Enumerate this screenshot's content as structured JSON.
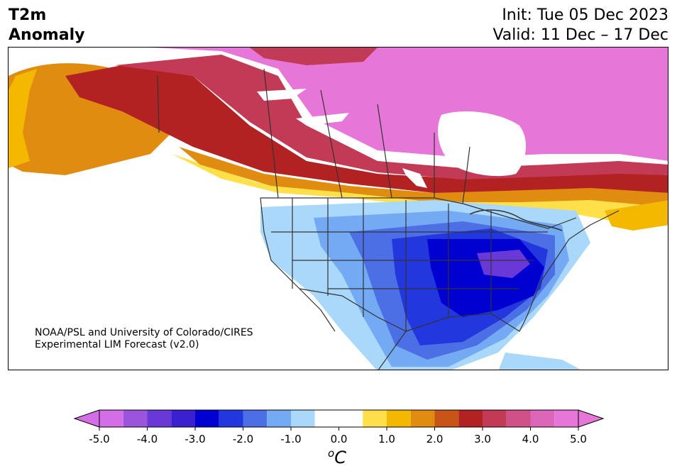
{
  "title": {
    "left_line1": "T2m",
    "left_line2": "Anomaly",
    "init": "Init: Tue 05 Dec 2023",
    "valid": "Valid: 11 Dec – 17 Dec"
  },
  "credit": {
    "line1": "NOAA/PSL and University of Colorado/CIRES",
    "line2": "Experimental LIM Forecast (v2.0)"
  },
  "colorbar": {
    "ticks": [
      "-5.0",
      "-4.0",
      "-3.0",
      "-2.0",
      "-1.0",
      "0.0",
      "1.0",
      "2.0",
      "3.0",
      "4.0",
      "5.0"
    ],
    "unit_sup": "o",
    "unit": "C",
    "levels": [
      -5.0,
      -4.5,
      -4.0,
      -3.5,
      -3.0,
      -2.5,
      -2.0,
      -1.5,
      -1.0,
      -0.5,
      0.5,
      1.0,
      1.5,
      2.0,
      2.5,
      3.0,
      3.5,
      4.0,
      4.5,
      5.0
    ],
    "colors": [
      "#d46ee6",
      "#9b55dc",
      "#6b38d8",
      "#3a20cf",
      "#0000d0",
      "#2237de",
      "#4c6fe6",
      "#74aaf3",
      "#aad8fb",
      "#ffffff",
      "#ffe04a",
      "#f5b800",
      "#e08c10",
      "#c85418",
      "#b22222",
      "#c23a55",
      "#d05088",
      "#dc66b8",
      "#e677d8"
    ],
    "extend_min_color": "#d46ee6",
    "extend_max_color": "#e677d8"
  }
}
